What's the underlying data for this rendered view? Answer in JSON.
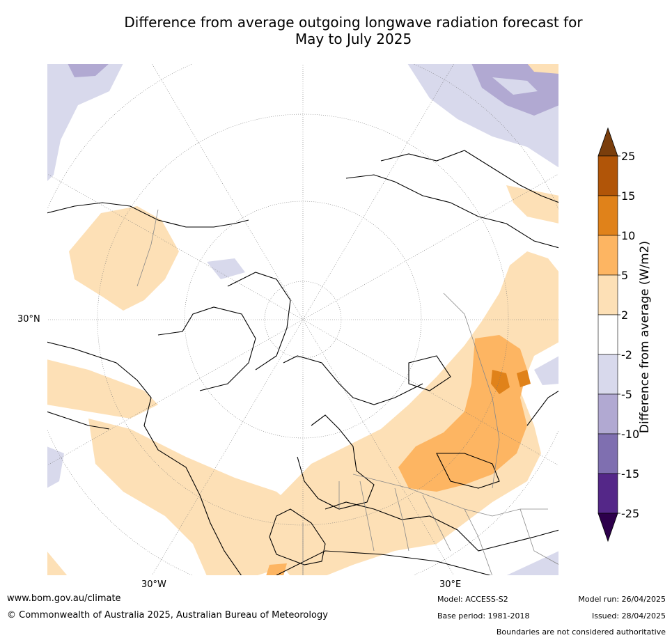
{
  "title_line1": "Difference from average outgoing longwave radiation forecast for",
  "title_line2": "May to July 2025",
  "map": {
    "lat_label": "30°N",
    "lon_labels": [
      "30°W",
      "30°E"
    ]
  },
  "colorbar": {
    "label": "Difference from average (W/m2)",
    "ticks": [
      "25",
      "15",
      "10",
      "5",
      "2",
      "-2",
      "-5",
      "-10",
      "-15",
      "-25"
    ],
    "colors": [
      "#7a3e0c",
      "#b15508",
      "#e0821a",
      "#fdb562",
      "#fde0b6",
      "#ffffff",
      "#d8d9ec",
      "#b1a9d2",
      "#7f6fb0",
      "#542788",
      "#2d004b"
    ]
  },
  "footer": {
    "website": "www.bom.gov.au/climate",
    "copyright": "© Commonwealth of Australia 2025, Australian Bureau of Meteorology",
    "model": "Model: ACCESS-S2",
    "base_period": "Base period: 1981-2018",
    "model_run": "Model run: 26/04/2025",
    "issued": "Issued: 28/04/2025",
    "disclaimer": "Boundaries are not considered authoritative"
  }
}
